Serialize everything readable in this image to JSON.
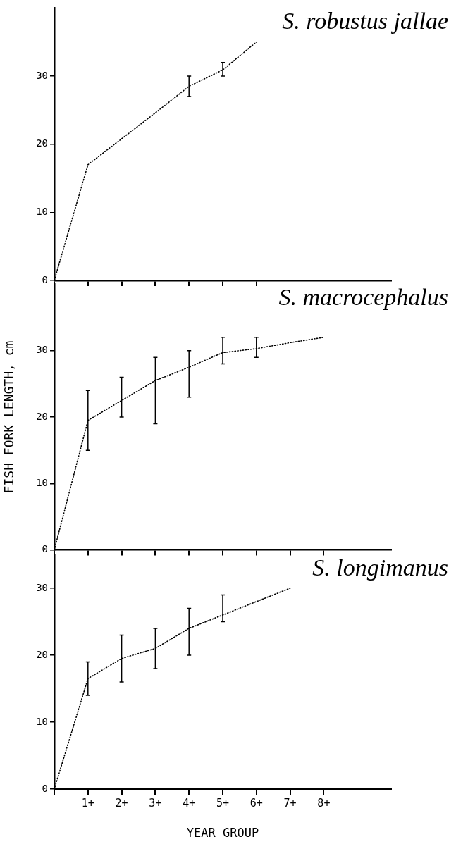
{
  "chart_data": [
    {
      "type": "line",
      "title": "S. robustus jallae",
      "categories": [
        null,
        null,
        null,
        null,
        null,
        null,
        null,
        null,
        null,
        null,
        null
      ],
      "series": [
        {
          "color": "#000000",
          "values": [
            0,
            17,
            20.8,
            24.6,
            28.5,
            30.9,
            35,
            null,
            null,
            null,
            null
          ],
          "errors": [
            null,
            null,
            null,
            null,
            [
              27,
              30
            ],
            [
              30,
              32
            ],
            null,
            null,
            null,
            null,
            null
          ]
        }
      ],
      "ylim": [
        0,
        40
      ],
      "yticks": [
        0,
        10,
        20,
        30
      ],
      "tick_labels": "y",
      "grid": false,
      "legend": false,
      "marker": "none",
      "line_style": "dotted"
    },
    {
      "type": "line",
      "title": "S. macrocephalus",
      "ylabel": "FISH FORK LENGTH, cm",
      "categories": [
        null,
        null,
        null,
        null,
        null,
        null,
        null,
        null,
        null,
        null,
        null
      ],
      "series": [
        {
          "color": "#000000",
          "values": [
            0,
            19.5,
            22.5,
            25.5,
            27.5,
            29.7,
            30.3,
            31.2,
            32,
            null,
            null
          ],
          "errors": [
            null,
            [
              15,
              24
            ],
            [
              20,
              26
            ],
            [
              19,
              29
            ],
            [
              23,
              30
            ],
            [
              28,
              32
            ],
            [
              29,
              32
            ],
            null,
            null,
            null,
            null
          ]
        }
      ],
      "ylim": [
        0,
        40
      ],
      "yticks": [
        0,
        10,
        20,
        30
      ],
      "tick_labels": "y",
      "grid": false,
      "legend": false,
      "marker": "none",
      "line_style": "dotted"
    },
    {
      "type": "line",
      "title": "S. longimanus",
      "xlabel": "YEAR GROUP",
      "categories": [
        null,
        "1+",
        "2+",
        "3+",
        "4+",
        "5+",
        "6+",
        "7+",
        "8+",
        null,
        null
      ],
      "series": [
        {
          "color": "#000000",
          "values": [
            0,
            16.5,
            19.5,
            21,
            24,
            26,
            28,
            30,
            null,
            null,
            null
          ],
          "errors": [
            null,
            [
              14,
              19
            ],
            [
              16,
              23
            ],
            [
              18,
              24
            ],
            [
              20,
              27
            ],
            [
              25,
              29
            ],
            null,
            null,
            null,
            null,
            null
          ]
        }
      ],
      "ylim": [
        0,
        35
      ],
      "yticks": [
        0,
        10,
        20,
        30
      ],
      "grid": false,
      "legend": false,
      "marker": "none",
      "line_style": "dotted"
    }
  ]
}
